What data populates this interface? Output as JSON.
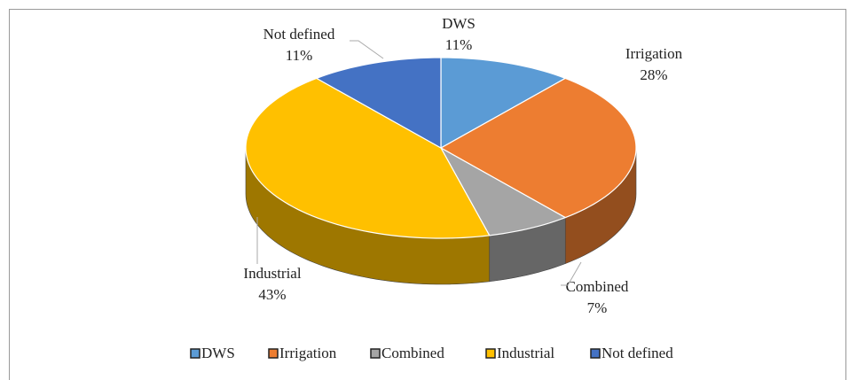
{
  "chart_data": {
    "type": "pie",
    "categories": [
      "DWS",
      "Irrigation",
      "Combined",
      "Industrial",
      "Not defined"
    ],
    "values": [
      11,
      28,
      7,
      43,
      11
    ],
    "value_labels": [
      "11%",
      "28%",
      "7%",
      "43%",
      "11%"
    ],
    "colors": [
      "#5b9bd5",
      "#ed7d31",
      "#a5a5a5",
      "#ffc000",
      "#4472c4"
    ],
    "legend": "bottom"
  }
}
